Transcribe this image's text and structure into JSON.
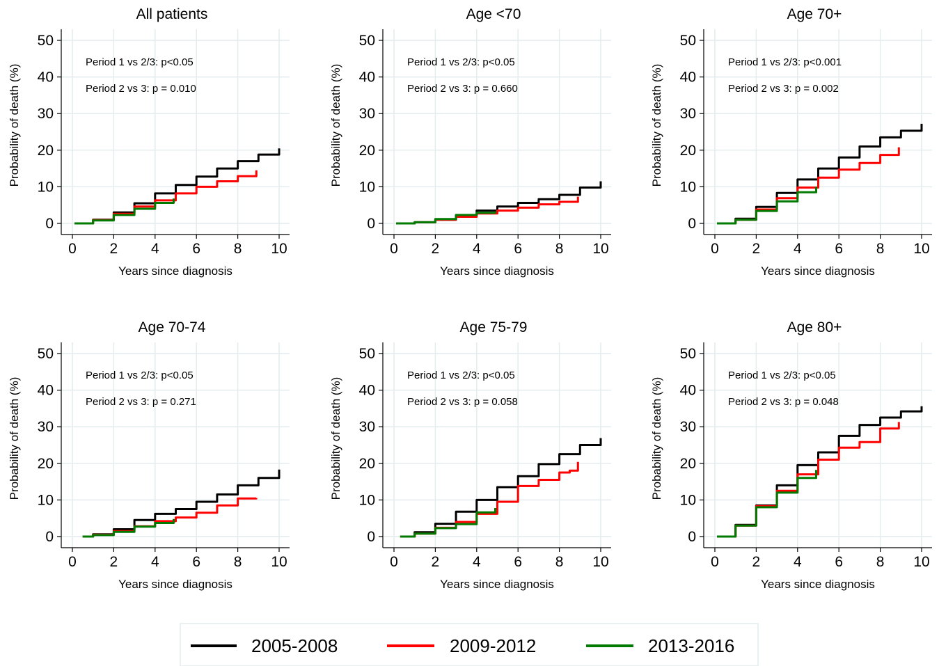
{
  "figure": {
    "legend": [
      {
        "name": "2005-2008",
        "color": "#000000"
      },
      {
        "name": "2009-2012",
        "color": "#ff0000"
      },
      {
        "name": "2013-2016",
        "color": "#007a00"
      }
    ]
  },
  "chart_data": [
    {
      "type": "line",
      "title": "All patients",
      "xlabel": "Years since diagnosis",
      "ylabel": "Probability of death (%)",
      "xlim": [
        0,
        10
      ],
      "ylim": [
        0,
        50
      ],
      "xticks": [
        "0",
        "2",
        "4",
        "6",
        "8",
        "10"
      ],
      "yticks": [
        "0",
        "10",
        "20",
        "30",
        "40",
        "50"
      ],
      "grid": true,
      "annotations": [
        "Period 1 vs 2/3: p<0.05",
        "Period 2 vs 3: p = 0.010"
      ],
      "series": [
        {
          "name": "2005-2008",
          "color": "#000000",
          "x": [
            0.1,
            1,
            2,
            3,
            4,
            5,
            6,
            7,
            8,
            9,
            10
          ],
          "y": [
            0,
            1,
            3,
            5.5,
            8.2,
            10.5,
            12.8,
            15,
            17,
            18.8,
            20.5
          ]
        },
        {
          "name": "2009-2012",
          "color": "#ff0000",
          "x": [
            0.1,
            1,
            2,
            3,
            4,
            5,
            6,
            7,
            8,
            8.9
          ],
          "y": [
            0,
            0.9,
            2.6,
            4.6,
            6.3,
            8.2,
            10,
            11.5,
            12.9,
            14.5
          ]
        },
        {
          "name": "2013-2016",
          "color": "#007a00",
          "x": [
            0.1,
            1,
            2,
            3,
            4,
            4.9
          ],
          "y": [
            0,
            0.8,
            2.3,
            4,
            5.6,
            6.8
          ]
        }
      ]
    },
    {
      "type": "line",
      "title": "Age <70",
      "xlabel": "Years since diagnosis",
      "ylabel": "Probability of death (%)",
      "xlim": [
        0,
        10
      ],
      "ylim": [
        0,
        50
      ],
      "xticks": [
        "0",
        "2",
        "4",
        "6",
        "8",
        "10"
      ],
      "yticks": [
        "0",
        "10",
        "20",
        "30",
        "40",
        "50"
      ],
      "grid": true,
      "annotations": [
        "Period 1 vs 2/3: p<0.05",
        "Period 2 vs 3: p = 0.660"
      ],
      "series": [
        {
          "name": "2005-2008",
          "color": "#000000",
          "x": [
            0.1,
            1,
            2,
            3,
            4,
            5,
            6,
            7,
            8,
            9,
            10
          ],
          "y": [
            0,
            0.3,
            1,
            2.2,
            3.5,
            4.6,
            5.6,
            6.6,
            7.8,
            9.8,
            11.5
          ]
        },
        {
          "name": "2009-2012",
          "color": "#ff0000",
          "x": [
            0.1,
            1,
            2,
            3,
            4,
            5,
            6,
            7,
            8,
            8.9
          ],
          "y": [
            0,
            0.3,
            1,
            1.8,
            2.7,
            3.5,
            4.3,
            5.2,
            5.9,
            7.3
          ]
        },
        {
          "name": "2013-2016",
          "color": "#007a00",
          "x": [
            0.1,
            1,
            2,
            3,
            4,
            4.9
          ],
          "y": [
            0,
            0.3,
            1.2,
            2.3,
            2.9,
            3.3
          ]
        }
      ]
    },
    {
      "type": "line",
      "title": "Age 70+",
      "xlabel": "Years since diagnosis",
      "ylabel": "Probability of death (%)",
      "xlim": [
        0,
        10
      ],
      "ylim": [
        0,
        50
      ],
      "xticks": [
        "0",
        "2",
        "4",
        "6",
        "8",
        "10"
      ],
      "yticks": [
        "0",
        "10",
        "20",
        "30",
        "40",
        "50"
      ],
      "grid": true,
      "annotations": [
        "Period 1 vs 2/3: p<0.001",
        "Period 2 vs 3: p = 0.002"
      ],
      "series": [
        {
          "name": "2005-2008",
          "color": "#000000",
          "x": [
            0.1,
            1,
            2,
            3,
            4,
            5,
            6,
            7,
            8,
            9,
            10
          ],
          "y": [
            0,
            1.3,
            4.5,
            8.3,
            12,
            15,
            18,
            21,
            23.5,
            25.3,
            27.2
          ]
        },
        {
          "name": "2009-2012",
          "color": "#ff0000",
          "x": [
            0.1,
            1,
            2,
            3,
            4,
            5,
            6,
            7,
            8,
            8.9
          ],
          "y": [
            0,
            1,
            3.8,
            6.9,
            9.8,
            12.5,
            14.7,
            16.5,
            18.7,
            20.8
          ]
        },
        {
          "name": "2013-2016",
          "color": "#007a00",
          "x": [
            0.1,
            1,
            2,
            3,
            4,
            4.9
          ],
          "y": [
            0,
            1,
            3.4,
            6,
            8.5,
            10
          ]
        }
      ]
    },
    {
      "type": "line",
      "title": "Age 70-74",
      "xlabel": "Years since diagnosis",
      "ylabel": "Probability of death (%)",
      "xlim": [
        0,
        10
      ],
      "ylim": [
        0,
        50
      ],
      "xticks": [
        "0",
        "2",
        "4",
        "6",
        "8",
        "10"
      ],
      "yticks": [
        "0",
        "10",
        "20",
        "30",
        "40",
        "50"
      ],
      "grid": true,
      "annotations": [
        "Period 1 vs 2/3: p<0.05",
        "Period 2 vs 3: p = 0.271"
      ],
      "series": [
        {
          "name": "2005-2008",
          "color": "#000000",
          "x": [
            0.5,
            1,
            2,
            3,
            4,
            5,
            6,
            7,
            8,
            9,
            10
          ],
          "y": [
            0,
            0.6,
            2,
            4.5,
            6.2,
            7.5,
            9.5,
            11.5,
            14,
            16,
            18.3
          ]
        },
        {
          "name": "2009-2012",
          "color": "#ff0000",
          "x": [
            0.5,
            1,
            2,
            3,
            4,
            5,
            6,
            7,
            8,
            8.9
          ],
          "y": [
            0,
            0.5,
            1.5,
            2.8,
            4.2,
            5.2,
            6.5,
            8.5,
            10.4,
            10.5
          ]
        },
        {
          "name": "2013-2016",
          "color": "#007a00",
          "x": [
            0.5,
            1,
            2,
            3,
            4,
            4.9
          ],
          "y": [
            0,
            0.4,
            1.3,
            2.7,
            3.7,
            4.8
          ]
        }
      ]
    },
    {
      "type": "line",
      "title": "Age 75-79",
      "xlabel": "Years since diagnosis",
      "ylabel": "Probability of death (%)",
      "xlim": [
        0,
        10
      ],
      "ylim": [
        0,
        50
      ],
      "xticks": [
        "0",
        "2",
        "4",
        "6",
        "8",
        "10"
      ],
      "yticks": [
        "0",
        "10",
        "20",
        "30",
        "40",
        "50"
      ],
      "grid": true,
      "annotations": [
        "Period 1 vs 2/3: p<0.05",
        "Period 2 vs 3: p = 0.058"
      ],
      "series": [
        {
          "name": "2005-2008",
          "color": "#000000",
          "x": [
            0.3,
            1,
            2,
            3,
            4,
            5,
            6,
            7,
            8,
            9,
            10
          ],
          "y": [
            0,
            1.2,
            3.5,
            6.8,
            10,
            13.5,
            16.5,
            19.8,
            22.5,
            25,
            26.9
          ]
        },
        {
          "name": "2009-2012",
          "color": "#ff0000",
          "x": [
            0.3,
            1,
            2,
            3,
            4,
            5,
            6,
            7,
            8,
            8.5,
            8.9
          ],
          "y": [
            0,
            0.8,
            2.4,
            4,
            6.2,
            9.5,
            13.8,
            15.5,
            17.5,
            18,
            20.4
          ]
        },
        {
          "name": "2013-2016",
          "color": "#007a00",
          "x": [
            0.3,
            1,
            2,
            3,
            4,
            4.9
          ],
          "y": [
            0,
            0.8,
            2.3,
            3.4,
            6.6,
            7.8
          ]
        }
      ]
    },
    {
      "type": "line",
      "title": "Age 80+",
      "xlabel": "Years since diagnosis",
      "ylabel": "Probability of death (%)",
      "xlim": [
        0,
        10
      ],
      "ylim": [
        0,
        50
      ],
      "xticks": [
        "0",
        "2",
        "4",
        "6",
        "8",
        "10"
      ],
      "yticks": [
        "0",
        "10",
        "20",
        "30",
        "40",
        "50"
      ],
      "grid": true,
      "annotations": [
        "Period 1 vs 2/3: p<0.05",
        "Period 2 vs 3: p = 0.048"
      ],
      "series": [
        {
          "name": "2005-2008",
          "color": "#000000",
          "x": [
            0.1,
            1,
            2,
            3,
            4,
            5,
            6,
            7,
            8,
            9,
            10
          ],
          "y": [
            0,
            3.2,
            8.5,
            14,
            19.5,
            23,
            27.5,
            30.5,
            32.5,
            34.2,
            35.6
          ]
        },
        {
          "name": "2009-2012",
          "color": "#ff0000",
          "x": [
            0.1,
            1,
            2,
            3,
            4,
            5,
            6,
            7,
            8,
            8.9
          ],
          "y": [
            0,
            3,
            8.3,
            12.5,
            17,
            21,
            24.3,
            25.8,
            29.5,
            31.3
          ]
        },
        {
          "name": "2013-2016",
          "color": "#007a00",
          "x": [
            0.1,
            1,
            2,
            3,
            4,
            4.9
          ],
          "y": [
            0,
            3,
            8,
            12,
            16,
            18.2
          ]
        }
      ]
    }
  ]
}
